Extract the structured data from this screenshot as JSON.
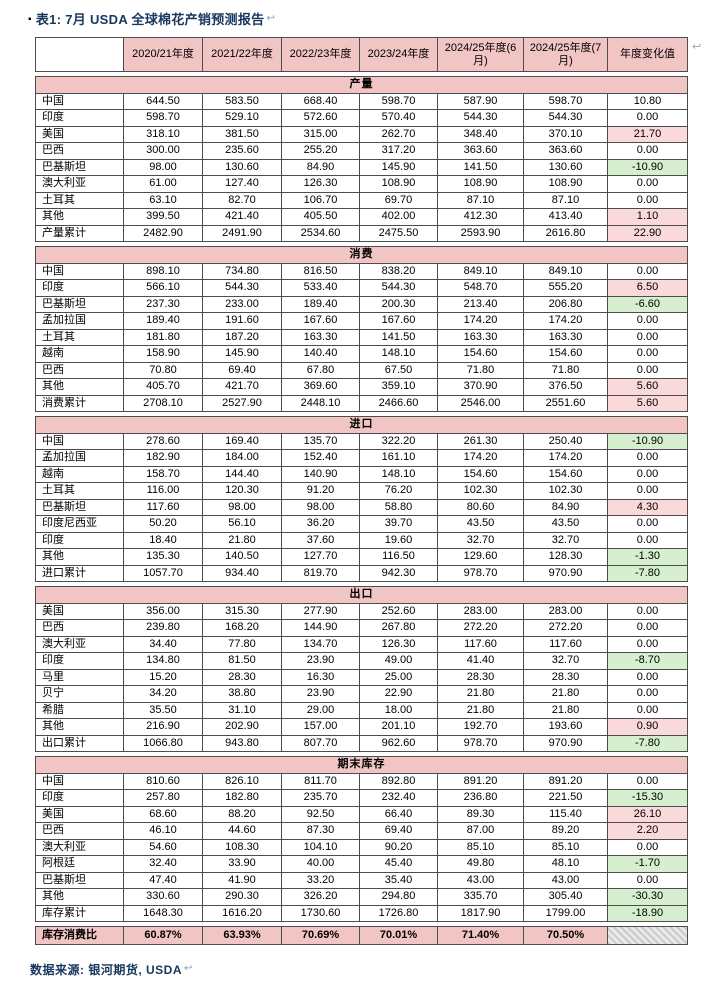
{
  "colors": {
    "pink": "#f2c5c5",
    "up": "#f9d9d9",
    "down": "#d6f0cf",
    "navy": "#17375e",
    "border": "#4d4d4d",
    "anchor": "#7f9bc0"
  },
  "title": {
    "bullet": "▪",
    "text": "表1: 7月 USDA 全球棉花产销预测报告",
    "anchor": "↩"
  },
  "page_anchor": "↩",
  "footer": {
    "text": "数据来源: 银河期货, USDA",
    "anchor": "↩"
  },
  "table": {
    "headers": [
      "",
      "2020/21年度",
      "2021/22年度",
      "2022/23年度",
      "2023/24年度",
      "2024/25年度(6月)",
      "2024/25年度(7月)",
      "年度变化值"
    ],
    "sections": [
      {
        "name": "产量",
        "rows": [
          {
            "label": "中国",
            "values": [
              "644.50",
              "583.50",
              "668.40",
              "598.70",
              "587.90",
              "598.70"
            ],
            "change": "10.80",
            "hl": "none"
          },
          {
            "label": "印度",
            "values": [
              "598.70",
              "529.10",
              "572.60",
              "570.40",
              "544.30",
              "544.30"
            ],
            "change": "0.00",
            "hl": "none"
          },
          {
            "label": "美国",
            "values": [
              "318.10",
              "381.50",
              "315.00",
              "262.70",
              "348.40",
              "370.10"
            ],
            "change": "21.70",
            "hl": "up"
          },
          {
            "label": "巴西",
            "values": [
              "300.00",
              "235.60",
              "255.20",
              "317.20",
              "363.60",
              "363.60"
            ],
            "change": "0.00",
            "hl": "none"
          },
          {
            "label": "巴基斯坦",
            "values": [
              "98.00",
              "130.60",
              "84.90",
              "145.90",
              "141.50",
              "130.60"
            ],
            "change": "-10.90",
            "hl": "down"
          },
          {
            "label": "澳大利亚",
            "values": [
              "61.00",
              "127.40",
              "126.30",
              "108.90",
              "108.90",
              "108.90"
            ],
            "change": "0.00",
            "hl": "none"
          },
          {
            "label": "土耳其",
            "values": [
              "63.10",
              "82.70",
              "106.70",
              "69.70",
              "87.10",
              "87.10"
            ],
            "change": "0.00",
            "hl": "none"
          },
          {
            "label": "其他",
            "values": [
              "399.50",
              "421.40",
              "405.50",
              "402.00",
              "412.30",
              "413.40"
            ],
            "change": "1.10",
            "hl": "up"
          },
          {
            "label": "产量累计",
            "values": [
              "2482.90",
              "2491.90",
              "2534.60",
              "2475.50",
              "2593.90",
              "2616.80"
            ],
            "change": "22.90",
            "hl": "up"
          }
        ]
      },
      {
        "name": "消费",
        "rows": [
          {
            "label": "中国",
            "values": [
              "898.10",
              "734.80",
              "816.50",
              "838.20",
              "849.10",
              "849.10"
            ],
            "change": "0.00",
            "hl": "none"
          },
          {
            "label": "印度",
            "values": [
              "566.10",
              "544.30",
              "533.40",
              "544.30",
              "548.70",
              "555.20"
            ],
            "change": "6.50",
            "hl": "up"
          },
          {
            "label": "巴基斯坦",
            "values": [
              "237.30",
              "233.00",
              "189.40",
              "200.30",
              "213.40",
              "206.80"
            ],
            "change": "-6.60",
            "hl": "down"
          },
          {
            "label": "孟加拉国",
            "values": [
              "189.40",
              "191.60",
              "167.60",
              "167.60",
              "174.20",
              "174.20"
            ],
            "change": "0.00",
            "hl": "none"
          },
          {
            "label": "土耳其",
            "values": [
              "181.80",
              "187.20",
              "163.30",
              "141.50",
              "163.30",
              "163.30"
            ],
            "change": "0.00",
            "hl": "none"
          },
          {
            "label": "越南",
            "values": [
              "158.90",
              "145.90",
              "140.40",
              "148.10",
              "154.60",
              "154.60"
            ],
            "change": "0.00",
            "hl": "none"
          },
          {
            "label": "巴西",
            "values": [
              "70.80",
              "69.40",
              "67.80",
              "67.50",
              "71.80",
              "71.80"
            ],
            "change": "0.00",
            "hl": "none"
          },
          {
            "label": "其他",
            "values": [
              "405.70",
              "421.70",
              "369.60",
              "359.10",
              "370.90",
              "376.50"
            ],
            "change": "5.60",
            "hl": "up"
          },
          {
            "label": "消费累计",
            "values": [
              "2708.10",
              "2527.90",
              "2448.10",
              "2466.60",
              "2546.00",
              "2551.60"
            ],
            "change": "5.60",
            "hl": "up"
          }
        ]
      },
      {
        "name": "进口",
        "rows": [
          {
            "label": "中国",
            "values": [
              "278.60",
              "169.40",
              "135.70",
              "322.20",
              "261.30",
              "250.40"
            ],
            "change": "-10.90",
            "hl": "down"
          },
          {
            "label": "孟加拉国",
            "values": [
              "182.90",
              "184.00",
              "152.40",
              "161.10",
              "174.20",
              "174.20"
            ],
            "change": "0.00",
            "hl": "none"
          },
          {
            "label": "越南",
            "values": [
              "158.70",
              "144.40",
              "140.90",
              "148.10",
              "154.60",
              "154.60"
            ],
            "change": "0.00",
            "hl": "none"
          },
          {
            "label": "土耳其",
            "values": [
              "116.00",
              "120.30",
              "91.20",
              "76.20",
              "102.30",
              "102.30"
            ],
            "change": "0.00",
            "hl": "none"
          },
          {
            "label": "巴基斯坦",
            "values": [
              "117.60",
              "98.00",
              "98.00",
              "58.80",
              "80.60",
              "84.90"
            ],
            "change": "4.30",
            "hl": "up"
          },
          {
            "label": "印度尼西亚",
            "values": [
              "50.20",
              "56.10",
              "36.20",
              "39.70",
              "43.50",
              "43.50"
            ],
            "change": "0.00",
            "hl": "none"
          },
          {
            "label": "印度",
            "values": [
              "18.40",
              "21.80",
              "37.60",
              "19.60",
              "32.70",
              "32.70"
            ],
            "change": "0.00",
            "hl": "none"
          },
          {
            "label": "其他",
            "values": [
              "135.30",
              "140.50",
              "127.70",
              "116.50",
              "129.60",
              "128.30"
            ],
            "change": "-1.30",
            "hl": "down"
          },
          {
            "label": "进口累计",
            "values": [
              "1057.70",
              "934.40",
              "819.70",
              "942.30",
              "978.70",
              "970.90"
            ],
            "change": "-7.80",
            "hl": "down"
          }
        ]
      },
      {
        "name": "出口",
        "rows": [
          {
            "label": "美国",
            "values": [
              "356.00",
              "315.30",
              "277.90",
              "252.60",
              "283.00",
              "283.00"
            ],
            "change": "0.00",
            "hl": "none"
          },
          {
            "label": "巴西",
            "values": [
              "239.80",
              "168.20",
              "144.90",
              "267.80",
              "272.20",
              "272.20"
            ],
            "change": "0.00",
            "hl": "none"
          },
          {
            "label": "澳大利亚",
            "values": [
              "34.40",
              "77.80",
              "134.70",
              "126.30",
              "117.60",
              "117.60"
            ],
            "change": "0.00",
            "hl": "none"
          },
          {
            "label": "印度",
            "values": [
              "134.80",
              "81.50",
              "23.90",
              "49.00",
              "41.40",
              "32.70"
            ],
            "change": "-8.70",
            "hl": "down"
          },
          {
            "label": "马里",
            "values": [
              "15.20",
              "28.30",
              "16.30",
              "25.00",
              "28.30",
              "28.30"
            ],
            "change": "0.00",
            "hl": "none"
          },
          {
            "label": "贝宁",
            "values": [
              "34.20",
              "38.80",
              "23.90",
              "22.90",
              "21.80",
              "21.80"
            ],
            "change": "0.00",
            "hl": "none"
          },
          {
            "label": "希腊",
            "values": [
              "35.50",
              "31.10",
              "29.00",
              "18.00",
              "21.80",
              "21.80"
            ],
            "change": "0.00",
            "hl": "none"
          },
          {
            "label": "其他",
            "values": [
              "216.90",
              "202.90",
              "157.00",
              "201.10",
              "192.70",
              "193.60"
            ],
            "change": "0.90",
            "hl": "up"
          },
          {
            "label": "出口累计",
            "values": [
              "1066.80",
              "943.80",
              "807.70",
              "962.60",
              "978.70",
              "970.90"
            ],
            "change": "-7.80",
            "hl": "down"
          }
        ]
      },
      {
        "name": "期末库存",
        "rows": [
          {
            "label": "中国",
            "values": [
              "810.60",
              "826.10",
              "811.70",
              "892.80",
              "891.20",
              "891.20"
            ],
            "change": "0.00",
            "hl": "none"
          },
          {
            "label": "印度",
            "values": [
              "257.80",
              "182.80",
              "235.70",
              "232.40",
              "236.80",
              "221.50"
            ],
            "change": "-15.30",
            "hl": "down"
          },
          {
            "label": "美国",
            "values": [
              "68.60",
              "88.20",
              "92.50",
              "66.40",
              "89.30",
              "115.40"
            ],
            "change": "26.10",
            "hl": "up"
          },
          {
            "label": "巴西",
            "values": [
              "46.10",
              "44.60",
              "87.30",
              "69.40",
              "87.00",
              "89.20"
            ],
            "change": "2.20",
            "hl": "up"
          },
          {
            "label": "澳大利亚",
            "values": [
              "54.60",
              "108.30",
              "104.10",
              "90.20",
              "85.10",
              "85.10"
            ],
            "change": "0.00",
            "hl": "none"
          },
          {
            "label": "阿根廷",
            "values": [
              "32.40",
              "33.90",
              "40.00",
              "45.40",
              "49.80",
              "48.10"
            ],
            "change": "-1.70",
            "hl": "down"
          },
          {
            "label": "巴基斯坦",
            "values": [
              "47.40",
              "41.90",
              "33.20",
              "35.40",
              "43.00",
              "43.00"
            ],
            "change": "0.00",
            "hl": "none"
          },
          {
            "label": "其他",
            "values": [
              "330.60",
              "290.30",
              "326.20",
              "294.80",
              "335.70",
              "305.40"
            ],
            "change": "-30.30",
            "hl": "down"
          },
          {
            "label": "库存累计",
            "values": [
              "1648.30",
              "1616.20",
              "1730.60",
              "1726.80",
              "1817.90",
              "1799.00"
            ],
            "change": "-18.90",
            "hl": "down"
          }
        ]
      }
    ],
    "ratio": {
      "label": "库存消费比",
      "values": [
        "60.87%",
        "63.93%",
        "70.69%",
        "70.01%",
        "71.40%",
        "70.50%"
      ]
    }
  }
}
